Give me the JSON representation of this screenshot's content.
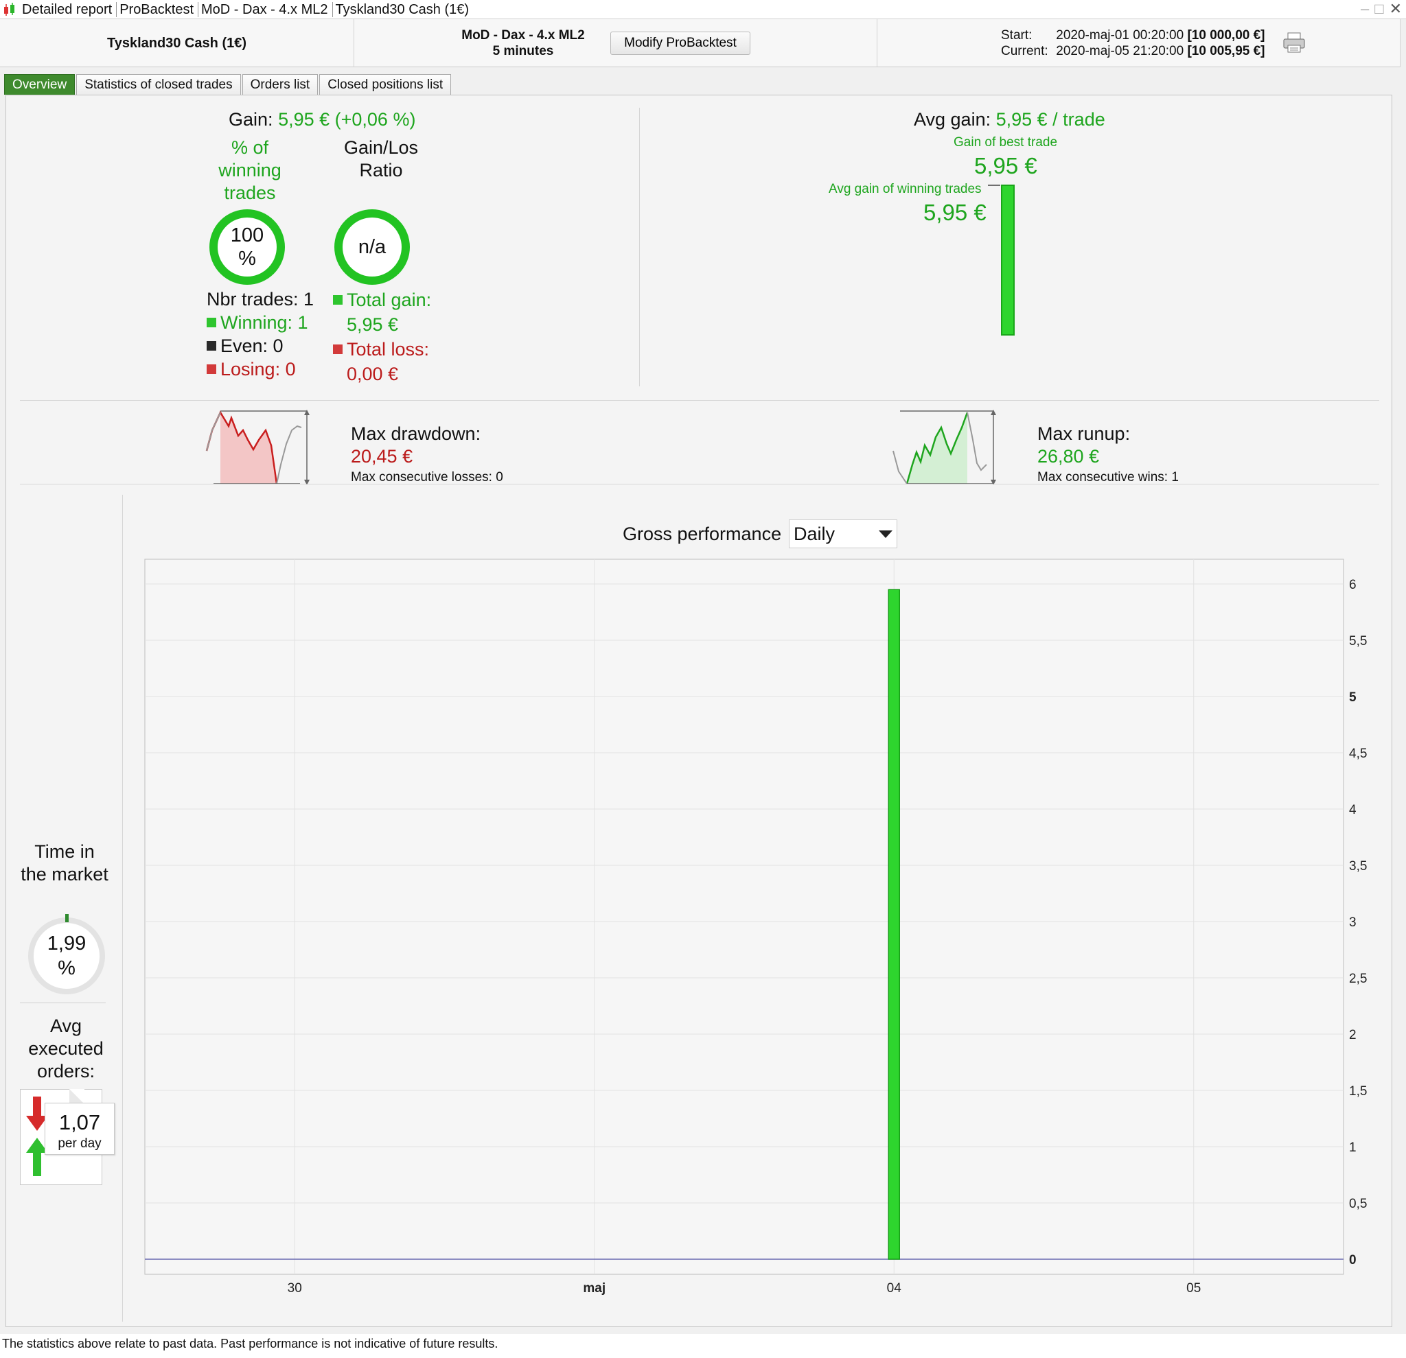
{
  "window": {
    "tabs": [
      "Detailed report",
      "ProBacktest",
      "MoD - Dax - 4.x ML2",
      "Tyskland30 Cash (1€)"
    ]
  },
  "header": {
    "instrument": "Tyskland30 Cash (1€)",
    "strategy_name": "MoD - Dax - 4.x ML2",
    "timeframe": "5 minutes",
    "modify_button": "Modify ProBacktest",
    "start_label": "Start:",
    "start_date": "2020-maj-01 00:20:00",
    "start_capital": "[10 000,00 €]",
    "current_label": "Current:",
    "current_date": "2020-maj-05 21:20:00",
    "current_capital": "[10 005,95 €]"
  },
  "tabs": [
    {
      "label": "Overview",
      "active": true
    },
    {
      "label": "Statistics of closed trades",
      "active": false
    },
    {
      "label": "Orders list",
      "active": false
    },
    {
      "label": "Closed positions list",
      "active": false
    }
  ],
  "overview": {
    "gain_label": "Gain:",
    "gain_value": "5,95 € (+0,06 %)",
    "pct_winning_label": "% of winning trades",
    "pct_winning_value": "100 %",
    "gain_loss_ratio_label": "Gain/Los Ratio",
    "gain_loss_ratio_value": "n/a",
    "nbr_trades": "Nbr trades: 1",
    "winning": "Winning: 1",
    "even": "Even: 0",
    "losing": "Losing: 0",
    "total_gain_label": "Total gain:",
    "total_gain_value": "5,95 €",
    "total_loss_label": "Total loss:",
    "total_loss_value": "0,00 €",
    "avg_gain_label": "Avg gain:",
    "avg_gain_value": "5,95 € / trade",
    "best_trade_label": "Gain of best trade",
    "best_trade_value": "5,95 €",
    "avg_winning_label": "Avg gain of winning trades",
    "avg_winning_value": "5,95 €",
    "max_drawdown_label": "Max drawdown:",
    "max_drawdown_value": "20,45 €",
    "max_consec_losses": "Max consecutive losses: 0",
    "max_runup_label": "Max runup:",
    "max_runup_value": "26,80 €",
    "max_consec_wins": "Max consecutive wins: 1",
    "time_in_market_label": "Time in the market",
    "time_in_market_value": "1,99 %",
    "avg_orders_label": "Avg executed orders:",
    "avg_orders_value": "1,07",
    "avg_orders_unit": "per day",
    "gross_perf_label": "Gross performance",
    "period_select": "Daily"
  },
  "colors": {
    "accent_green": "#1ea51e",
    "bar_green": "#2ed52e",
    "loss_red": "#bb1b1b",
    "tab_active": "#3e8a2d"
  },
  "chart_data": {
    "type": "bar",
    "title": "Gross performance",
    "categories": [
      "30",
      "maj",
      "04",
      "05"
    ],
    "values": [
      0,
      0,
      5.95,
      0
    ],
    "y_ticks": [
      "0",
      "0,5",
      "1",
      "1,5",
      "2",
      "2,5",
      "3",
      "3,5",
      "4",
      "4,5",
      "5",
      "5,5",
      "6"
    ],
    "ylim": [
      0,
      6
    ],
    "grid": true
  },
  "footer": {
    "disclaimer": "The statistics above relate to past data. Past performance is not indicative of future results."
  }
}
